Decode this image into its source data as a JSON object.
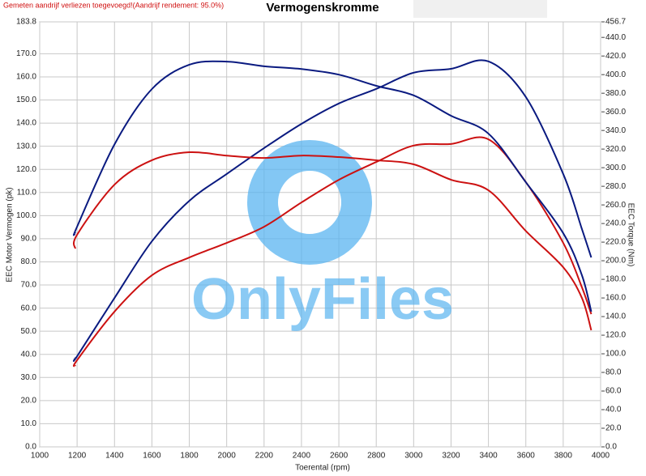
{
  "chart_data": {
    "type": "line",
    "title": "Vermogenskromme",
    "note": "Gemeten aandrijf verliezen toegevoegd!(Aandrijf rendement: 95.0%)",
    "watermark": "OnlyFiles",
    "xlabel": "Toerental (rpm)",
    "ylabel": "EEC Motor Vermogen (pk)",
    "y2label": "EEC Torque (Nm)",
    "x": [
      1190,
      1200,
      1400,
      1600,
      1800,
      2000,
      2200,
      2400,
      2600,
      2800,
      3000,
      3200,
      3400,
      3600,
      3800,
      3900,
      3950
    ],
    "series": [
      {
        "color": "#0a1a80",
        "axis": "y",
        "values": [
          38.5,
          39.2,
          64.4,
          88.9,
          106.4,
          118,
          129.2,
          139.7,
          148.5,
          154.8,
          161.8,
          163.5,
          166.7,
          151.3,
          118,
          94.2,
          81.9
        ]
      },
      {
        "color": "#cc1111",
        "axis": "y",
        "values": [
          35,
          37.5,
          58.5,
          74.2,
          81.9,
          88.2,
          95.2,
          105.7,
          115.5,
          123.2,
          130.3,
          131,
          133,
          114.5,
          88.2,
          69,
          57.4
        ]
      },
      {
        "color": "#0a1a80",
        "axis": "y2",
        "values": [
          229.6,
          236.6,
          325,
          384.5,
          410.6,
          414,
          409,
          406,
          400,
          388,
          377.7,
          355.8,
          336.6,
          284.4,
          229.6,
          184.4,
          145.3
        ]
      },
      {
        "color": "#cc1111",
        "axis": "y2",
        "values": [
          213,
          228,
          281.8,
          308,
          316.6,
          313,
          310.5,
          313,
          311.4,
          308,
          303.6,
          287,
          275.7,
          232,
          193,
          160,
          125.3
        ]
      }
    ],
    "xlim": [
      1000,
      4000
    ],
    "xticks": [
      1000,
      1200,
      1400,
      1600,
      1800,
      2000,
      2200,
      2400,
      2600,
      2800,
      3000,
      3200,
      3400,
      3600,
      3800,
      4000
    ],
    "ylim": [
      0,
      183.8
    ],
    "yticks": [
      {
        "value": 0,
        "label": "0.0"
      },
      {
        "value": 10,
        "label": "10.0"
      },
      {
        "value": 20,
        "label": "20.0"
      },
      {
        "value": 30,
        "label": "30.0"
      },
      {
        "value": 40,
        "label": "40.0"
      },
      {
        "value": 50,
        "label": "50.0"
      },
      {
        "value": 60,
        "label": "60.0"
      },
      {
        "value": 70,
        "label": "70.0"
      },
      {
        "value": 80,
        "label": "80.0"
      },
      {
        "value": 90,
        "label": "90.0"
      },
      {
        "value": 100,
        "label": "100.0"
      },
      {
        "value": 110,
        "label": "110.0"
      },
      {
        "value": 120,
        "label": "120.0"
      },
      {
        "value": 130,
        "label": "130.0"
      },
      {
        "value": 140,
        "label": "140.0"
      },
      {
        "value": 150,
        "label": "150.0"
      },
      {
        "value": 160,
        "label": "160.0"
      },
      {
        "value": 170,
        "label": "170.0"
      },
      183.8
    ],
    "y2lim": [
      0,
      456.7
    ],
    "y2ticks": [
      {
        "value": 0,
        "label": "0.0"
      },
      {
        "value": 20,
        "label": "20.0"
      },
      {
        "value": 40,
        "label": "40.0"
      },
      {
        "value": 60,
        "label": "60.0"
      },
      {
        "value": 80,
        "label": "80.0"
      },
      {
        "value": 100,
        "label": "100.0"
      },
      {
        "value": 120,
        "label": "120.0"
      },
      {
        "value": 140,
        "label": "140.0"
      },
      {
        "value": 160,
        "label": "160.0"
      },
      {
        "value": 180,
        "label": "180.0"
      },
      {
        "value": 200,
        "label": "200.0"
      },
      {
        "value": 220,
        "label": "220.0"
      },
      {
        "value": 240,
        "label": "240.0"
      },
      {
        "value": 260,
        "label": "260.0"
      },
      {
        "value": 280,
        "label": "280.0"
      },
      {
        "value": 300,
        "label": "300.0"
      },
      {
        "value": 320,
        "label": "320.0"
      },
      {
        "value": 340,
        "label": "340.0"
      },
      {
        "value": 360,
        "label": "360.0"
      },
      {
        "value": 380,
        "label": "380.0"
      },
      {
        "value": 400,
        "label": "400.0"
      },
      {
        "value": 420,
        "label": "420.0"
      },
      {
        "value": 440,
        "label": "440.0"
      },
      456.7
    ],
    "grid": true
  }
}
